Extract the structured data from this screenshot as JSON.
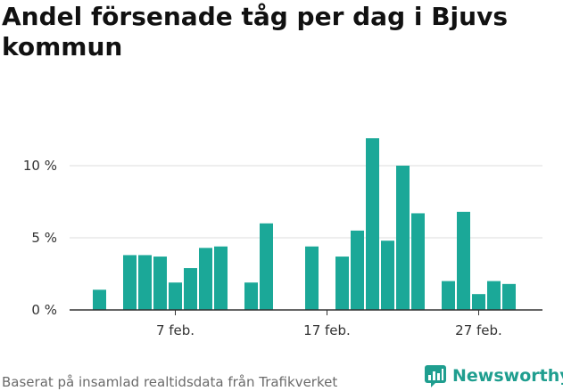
{
  "title": "Andel försenade tåg per dag i Bjuvs kommun",
  "source": "Baserat på insamlad realtidsdata från Trafikverket",
  "brand": "Newsworthy",
  "colors": {
    "bar": "#1ba898",
    "grid": "#dddddd",
    "axis": "#333333",
    "brand": "#1f9e8f"
  },
  "chart_data": {
    "type": "bar",
    "x": [
      "2 feb.",
      "3 feb.",
      "4 feb.",
      "5 feb.",
      "6 feb.",
      "7 feb.",
      "8 feb.",
      "9 feb.",
      "10 feb.",
      "11 feb.",
      "12 feb.",
      "13 feb.",
      "14 feb.",
      "15 feb.",
      "16 feb.",
      "17 feb.",
      "18 feb.",
      "19 feb.",
      "20 feb.",
      "21 feb.",
      "22 feb.",
      "23 feb.",
      "24 feb.",
      "25 feb.",
      "26 feb.",
      "27 feb.",
      "28 feb.",
      "29 feb."
    ],
    "values": [
      1.4,
      0,
      3.8,
      3.8,
      3.7,
      1.9,
      2.9,
      4.3,
      4.4,
      0,
      1.9,
      6.0,
      0,
      0,
      4.4,
      0,
      3.7,
      5.5,
      11.9,
      4.8,
      10.0,
      6.7,
      0,
      2.0,
      6.8,
      1.1,
      2.0,
      1.8
    ],
    "ylim": [
      0,
      14
    ],
    "yticks": [
      0,
      5,
      10
    ],
    "ytick_labels": [
      "0 %",
      "5 %",
      "10 %"
    ],
    "xtick_labels": [
      {
        "category": "7 feb.",
        "label": "7 feb."
      },
      {
        "category": "17 feb.",
        "label": "17 feb."
      },
      {
        "category": "27 feb.",
        "label": "27 feb."
      }
    ],
    "grid": true
  }
}
